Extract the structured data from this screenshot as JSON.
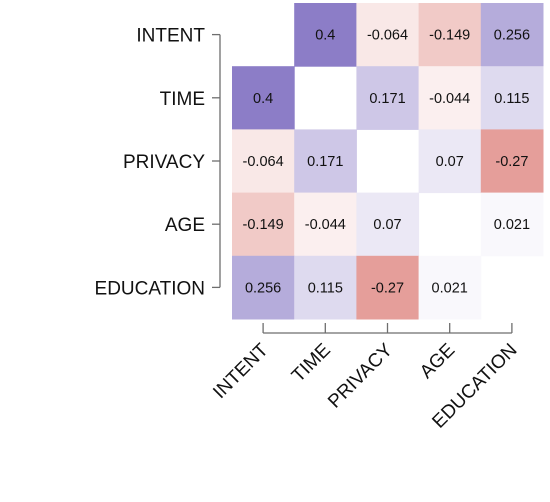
{
  "chart_data": {
    "type": "heatmap",
    "title": "",
    "variables": [
      "INTENT",
      "TIME",
      "PRIVACY",
      "AGE",
      "EDUCATION"
    ],
    "row_labels": [
      "INTENT",
      "TIME",
      "PRIVACY",
      "AGE",
      "EDUCATION"
    ],
    "col_labels": [
      "INTENT",
      "TIME",
      "PRIVACY",
      "AGE",
      "EDUCATION"
    ],
    "values": [
      [
        null,
        0.4,
        -0.064,
        -0.149,
        0.256
      ],
      [
        0.4,
        null,
        0.171,
        -0.044,
        0.115
      ],
      [
        -0.064,
        0.171,
        null,
        0.07,
        -0.27
      ],
      [
        -0.149,
        -0.044,
        0.07,
        null,
        0.021
      ],
      [
        0.256,
        0.115,
        -0.27,
        0.021,
        null
      ]
    ],
    "value_labels": [
      [
        "",
        "0.4",
        "-0.064",
        "-0.149",
        "0.256"
      ],
      [
        "0.4",
        "",
        "0.171",
        "-0.044",
        "0.115"
      ],
      [
        "-0.064",
        "0.171",
        "",
        "0.07",
        "-0.27"
      ],
      [
        "-0.149",
        "-0.044",
        "0.07",
        "",
        "0.021"
      ],
      [
        "0.256",
        "0.115",
        "-0.27",
        "0.021",
        ""
      ]
    ],
    "color_scale": {
      "min": -0.4,
      "max": 0.4,
      "negative_color": "#d9706a",
      "neutral_color": "#ffffff",
      "positive_color": "#8c7dc7"
    },
    "legend": "none",
    "grid": false
  }
}
